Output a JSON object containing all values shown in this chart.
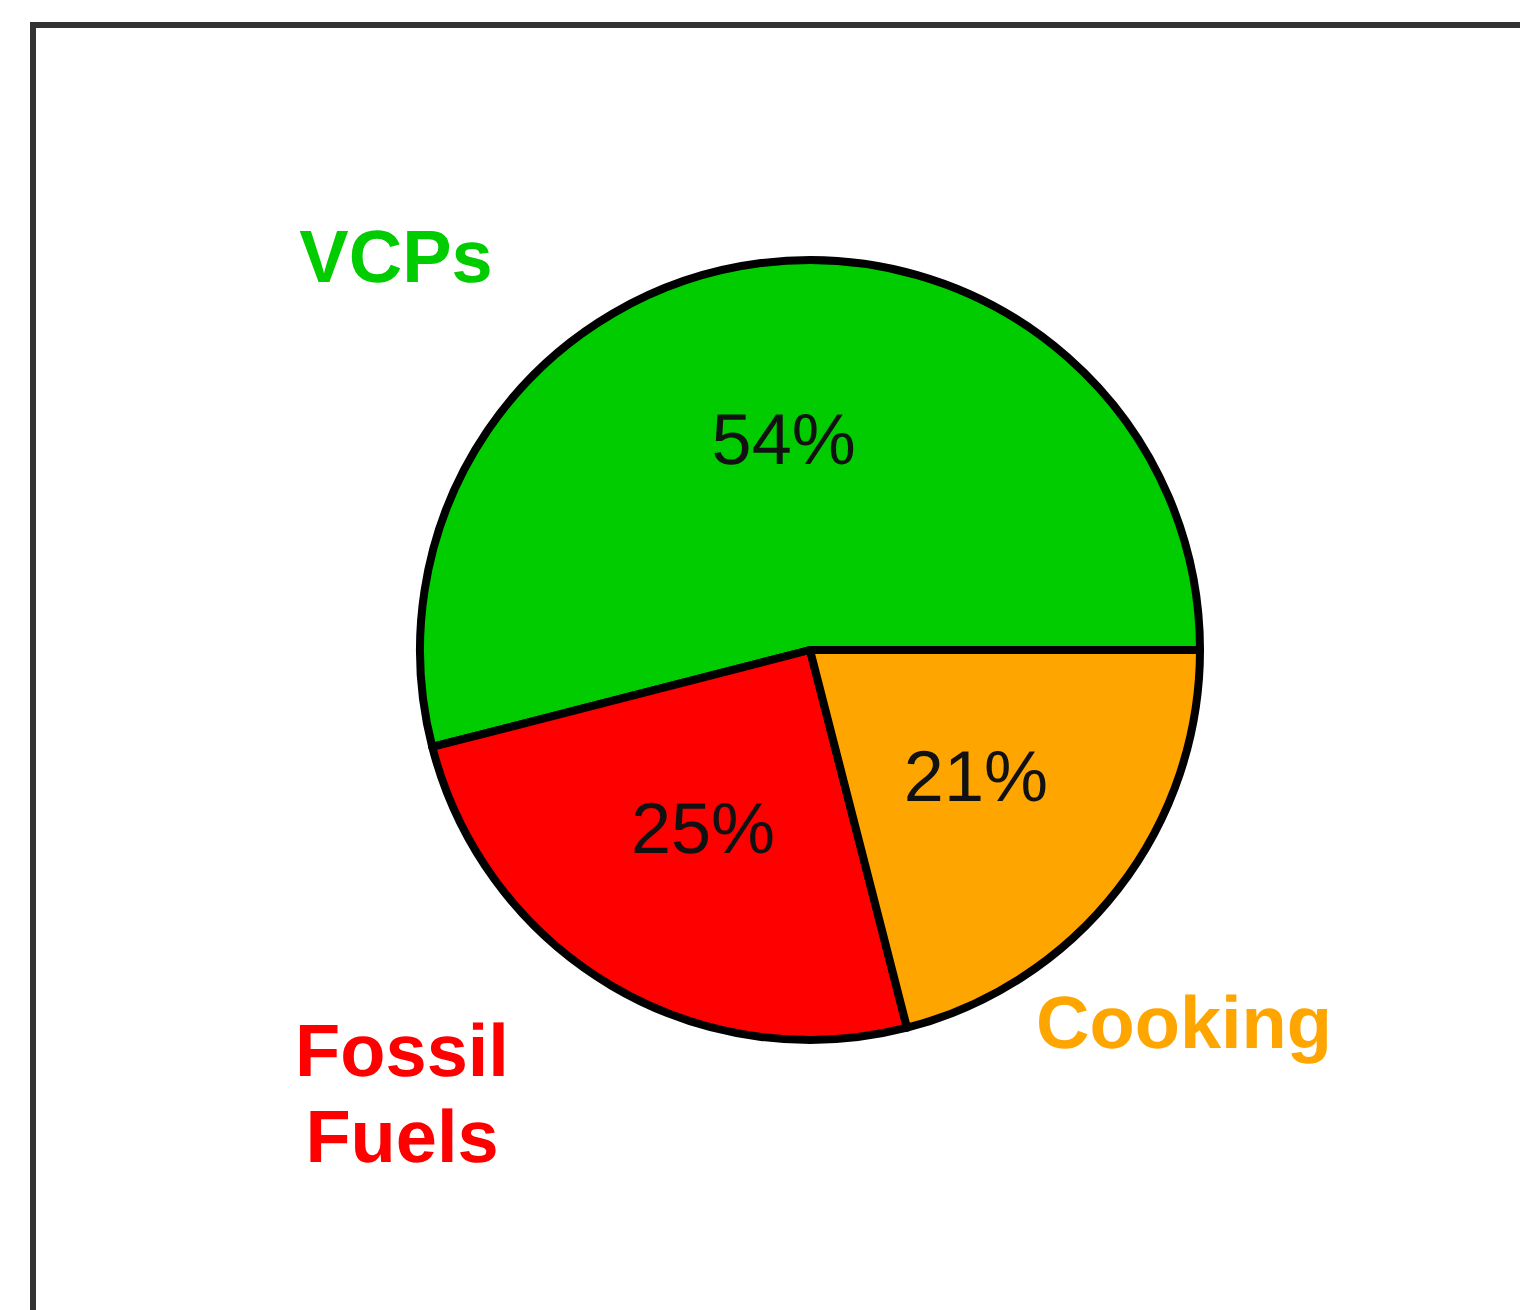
{
  "chart_data": {
    "type": "pie",
    "categories": [
      "VCPs",
      "Fossil Fuels",
      "Cooking"
    ],
    "values": [
      54,
      25,
      21
    ],
    "colors": [
      "#00cc00",
      "#ff0000",
      "#ffa500"
    ],
    "value_labels": [
      "54%",
      "25%",
      "21%"
    ]
  }
}
